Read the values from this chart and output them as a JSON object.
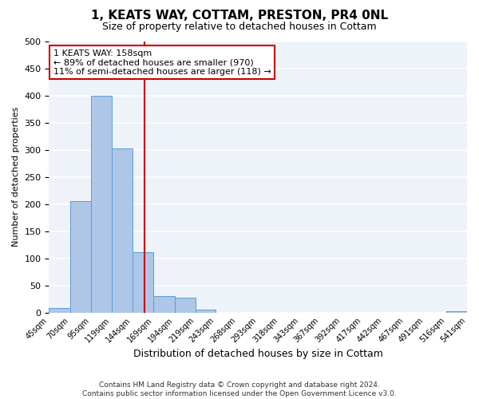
{
  "title": "1, KEATS WAY, COTTAM, PRESTON, PR4 0NL",
  "subtitle": "Size of property relative to detached houses in Cottam",
  "xlabel": "Distribution of detached houses by size in Cottam",
  "ylabel": "Number of detached properties",
  "bin_edges": [
    45,
    70,
    95,
    119,
    144,
    169,
    194,
    219,
    243,
    268,
    293,
    318,
    343,
    367,
    392,
    417,
    442,
    467,
    491,
    516,
    541
  ],
  "bar_heights": [
    8,
    205,
    400,
    302,
    112,
    30,
    27,
    6,
    0,
    0,
    0,
    0,
    0,
    0,
    0,
    0,
    0,
    0,
    0,
    2
  ],
  "bar_color": "#aec6e8",
  "bar_edge_color": "#5a9fd4",
  "property_size": 158,
  "vline_color": "#cc0000",
  "annotation_title": "1 KEATS WAY: 158sqm",
  "annotation_line1": "← 89% of detached houses are smaller (970)",
  "annotation_line2": "11% of semi-detached houses are larger (118) →",
  "annotation_box_color": "#ffffff",
  "annotation_border_color": "#cc0000",
  "tick_labels": [
    "45sqm",
    "70sqm",
    "95sqm",
    "119sqm",
    "144sqm",
    "169sqm",
    "194sqm",
    "219sqm",
    "243sqm",
    "268sqm",
    "293sqm",
    "318sqm",
    "343sqm",
    "367sqm",
    "392sqm",
    "417sqm",
    "442sqm",
    "467sqm",
    "491sqm",
    "516sqm",
    "541sqm"
  ],
  "ylim": [
    0,
    500
  ],
  "yticks": [
    0,
    50,
    100,
    150,
    200,
    250,
    300,
    350,
    400,
    450,
    500
  ],
  "footer1": "Contains HM Land Registry data © Crown copyright and database right 2024.",
  "footer2": "Contains public sector information licensed under the Open Government Licence v3.0.",
  "background_color": "#eef2f9",
  "grid_color": "#ffffff"
}
